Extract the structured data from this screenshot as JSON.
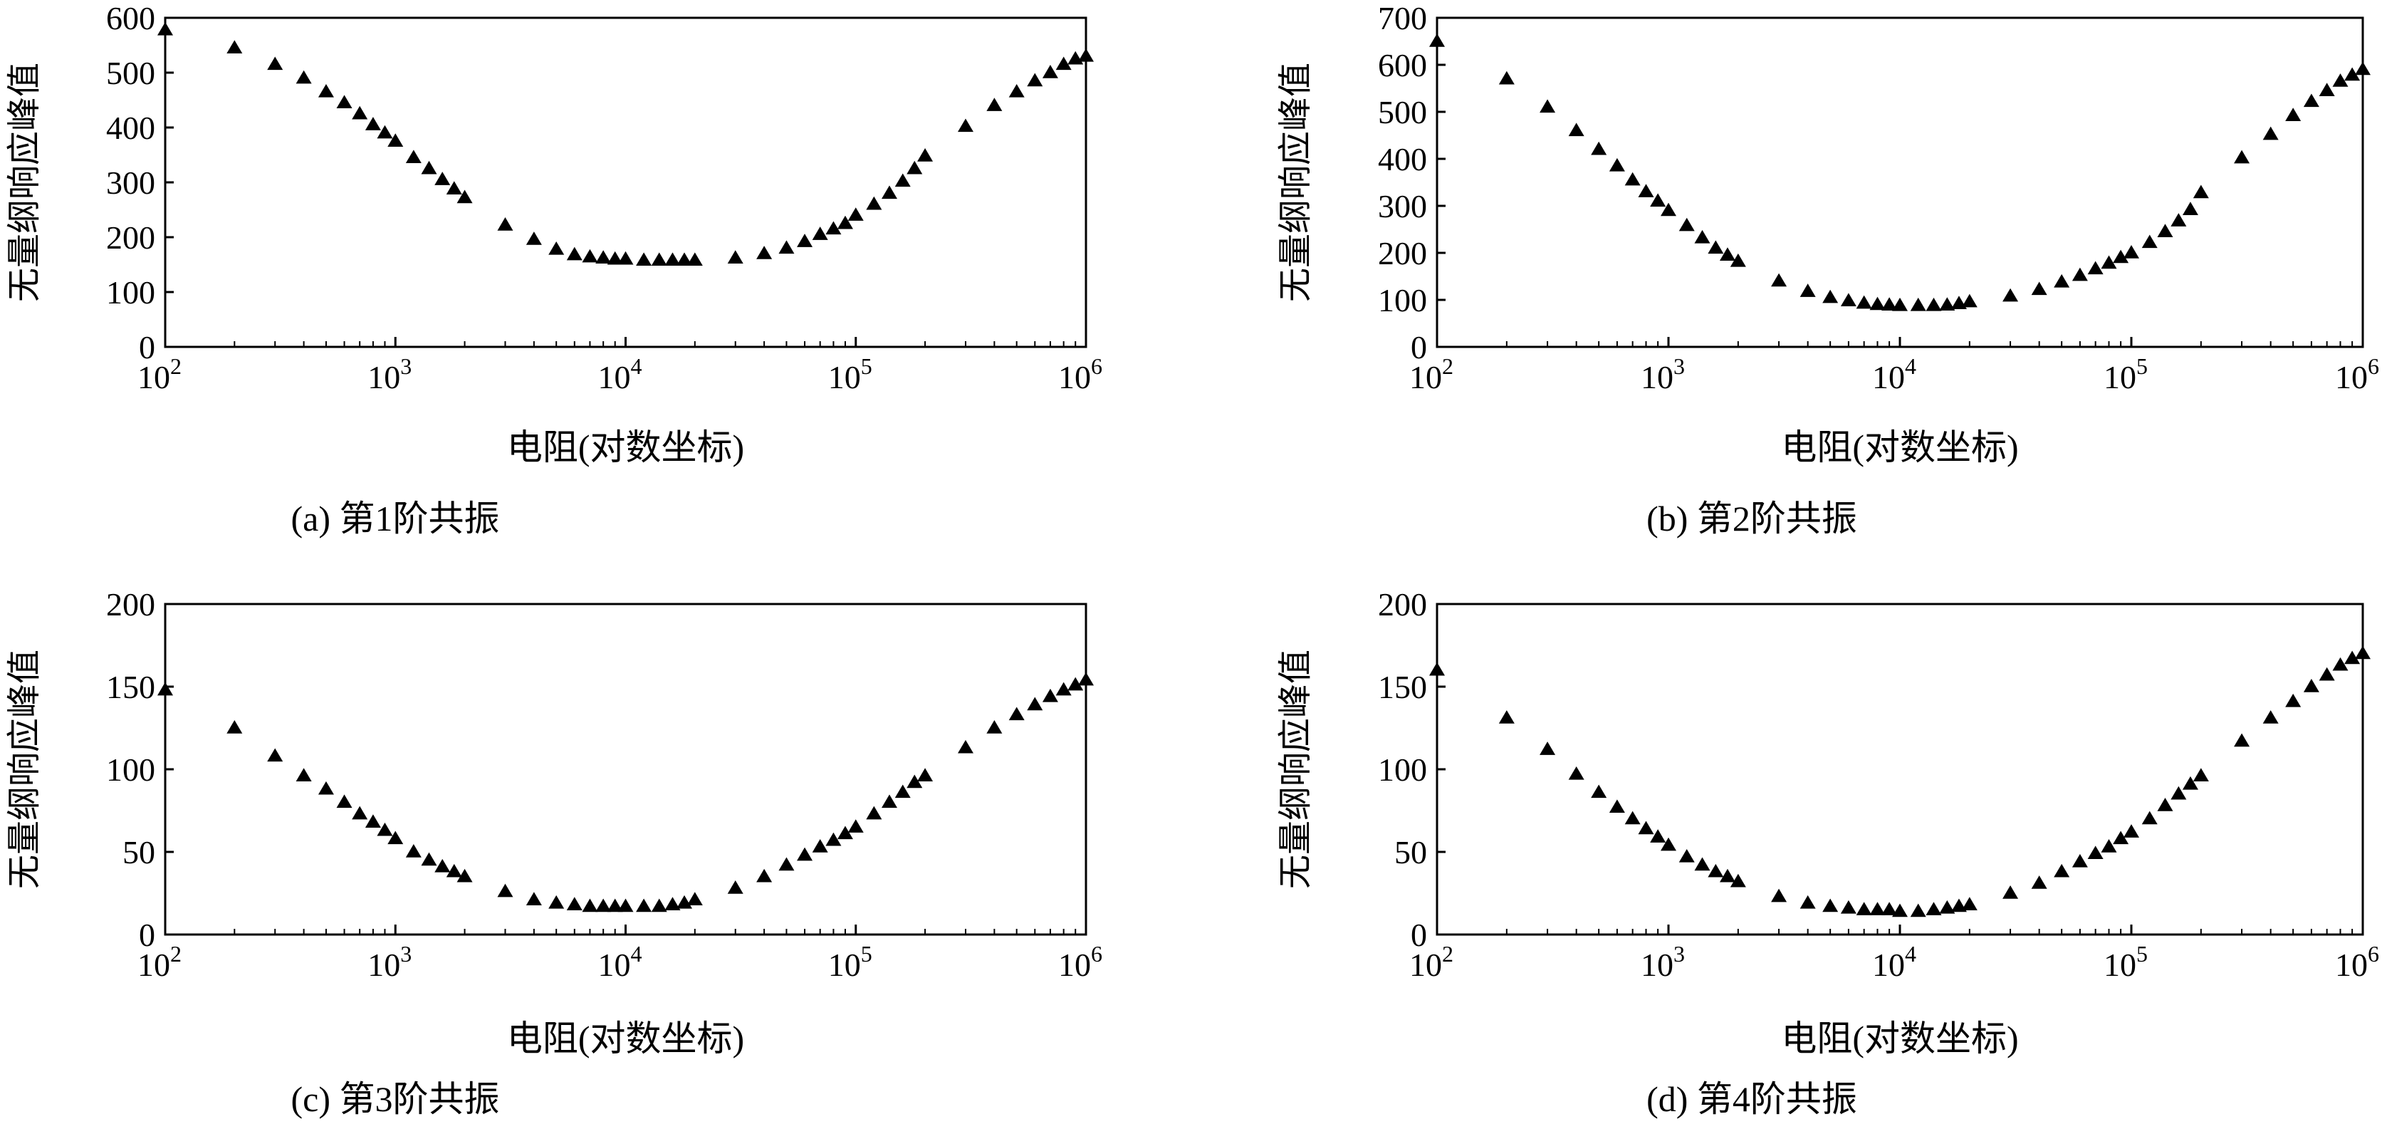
{
  "figure": {
    "panels": [
      {
        "caption": "(a) 第1阶共振"
      },
      {
        "caption": "(b) 第2阶共振"
      },
      {
        "caption": "(c) 第3阶共振"
      },
      {
        "caption": "(d) 第4阶共振"
      }
    ]
  },
  "chart_data": [
    {
      "type": "scatter",
      "caption": "(a) 第1阶共振",
      "xlabel": "电阻(对数坐标)",
      "ylabel": "无量纲响应峰值",
      "x_scale": "log",
      "xlim": [
        100,
        1000000
      ],
      "ylim": [
        0,
        600
      ],
      "x_ticks": [
        100,
        1000,
        10000,
        100000,
        1000000
      ],
      "x_tick_labels": [
        [
          "10",
          "2"
        ],
        [
          "10",
          "3"
        ],
        [
          "10",
          "4"
        ],
        [
          "10",
          "5"
        ],
        [
          "10",
          "6"
        ]
      ],
      "y_ticks": [
        0,
        100,
        200,
        300,
        400,
        500,
        600
      ],
      "marker": "triangle",
      "series": [
        {
          "x": [
            100,
            200,
            300,
            400,
            500,
            600,
            700,
            800,
            900,
            1000,
            1200,
            1400,
            1600,
            1800,
            2000,
            3000,
            4000,
            5000,
            6000,
            7000,
            8000,
            9000,
            10000,
            12000,
            14000,
            16000,
            18000,
            20000,
            30000,
            40000,
            50000,
            60000,
            70000,
            80000,
            90000,
            100000,
            120000,
            140000,
            160000,
            180000,
            200000,
            300000,
            400000,
            500000,
            600000,
            700000,
            800000,
            900000,
            1000000
          ],
          "y": [
            578,
            545,
            515,
            490,
            465,
            445,
            425,
            405,
            390,
            375,
            345,
            325,
            305,
            288,
            272,
            222,
            196,
            178,
            168,
            164,
            162,
            160,
            160,
            158,
            158,
            158,
            158,
            158,
            162,
            170,
            180,
            192,
            205,
            215,
            225,
            240,
            260,
            280,
            302,
            325,
            348,
            402,
            440,
            465,
            485,
            500,
            515,
            525,
            530
          ]
        }
      ]
    },
    {
      "type": "scatter",
      "caption": "(b) 第2阶共振",
      "xlabel": "电阻(对数坐标)",
      "ylabel": "无量纲响应峰值",
      "x_scale": "log",
      "xlim": [
        100,
        1000000
      ],
      "ylim": [
        0,
        700
      ],
      "x_ticks": [
        100,
        1000,
        10000,
        100000,
        1000000
      ],
      "x_tick_labels": [
        [
          "10",
          "2"
        ],
        [
          "10",
          "3"
        ],
        [
          "10",
          "4"
        ],
        [
          "10",
          "5"
        ],
        [
          "10",
          "6"
        ]
      ],
      "y_ticks": [
        0,
        100,
        200,
        300,
        400,
        500,
        600,
        700
      ],
      "marker": "triangle",
      "series": [
        {
          "x": [
            100,
            200,
            300,
            400,
            500,
            600,
            700,
            800,
            900,
            1000,
            1200,
            1400,
            1600,
            1800,
            2000,
            3000,
            4000,
            5000,
            6000,
            7000,
            8000,
            9000,
            10000,
            12000,
            14000,
            16000,
            18000,
            20000,
            30000,
            40000,
            50000,
            60000,
            70000,
            80000,
            90000,
            100000,
            120000,
            140000,
            160000,
            180000,
            200000,
            300000,
            400000,
            500000,
            600000,
            700000,
            800000,
            900000,
            1000000
          ],
          "y": [
            650,
            570,
            510,
            460,
            420,
            385,
            355,
            330,
            310,
            290,
            258,
            232,
            210,
            195,
            182,
            140,
            118,
            105,
            98,
            93,
            90,
            89,
            88,
            88,
            88,
            89,
            92,
            96,
            108,
            122,
            138,
            152,
            166,
            178,
            190,
            200,
            222,
            245,
            268,
            292,
            328,
            402,
            452,
            492,
            522,
            545,
            565,
            578,
            590
          ]
        }
      ]
    },
    {
      "type": "scatter",
      "caption": "(c) 第3阶共振",
      "xlabel": "电阻(对数坐标)",
      "ylabel": "无量纲响应峰值",
      "x_scale": "log",
      "xlim": [
        100,
        1000000
      ],
      "ylim": [
        0,
        200
      ],
      "x_ticks": [
        100,
        1000,
        10000,
        100000,
        1000000
      ],
      "x_tick_labels": [
        [
          "10",
          "2"
        ],
        [
          "10",
          "3"
        ],
        [
          "10",
          "4"
        ],
        [
          "10",
          "5"
        ],
        [
          "10",
          "6"
        ]
      ],
      "y_ticks": [
        0,
        50,
        100,
        150,
        200
      ],
      "marker": "triangle",
      "series": [
        {
          "x": [
            100,
            200,
            300,
            400,
            500,
            600,
            700,
            800,
            900,
            1000,
            1200,
            1400,
            1600,
            1800,
            2000,
            3000,
            4000,
            5000,
            6000,
            7000,
            8000,
            9000,
            10000,
            12000,
            14000,
            16000,
            18000,
            20000,
            30000,
            40000,
            50000,
            60000,
            70000,
            80000,
            90000,
            100000,
            120000,
            140000,
            160000,
            180000,
            200000,
            300000,
            400000,
            500000,
            600000,
            700000,
            800000,
            900000,
            1000000
          ],
          "y": [
            148,
            125,
            108,
            96,
            88,
            80,
            73,
            68,
            63,
            58,
            50,
            45,
            41,
            38,
            35,
            26,
            21,
            19,
            18,
            17,
            17,
            17,
            17,
            17,
            17,
            18,
            19,
            21,
            28,
            35,
            42,
            48,
            53,
            57,
            61,
            65,
            73,
            80,
            86,
            92,
            96,
            113,
            125,
            133,
            139,
            144,
            148,
            151,
            154
          ]
        }
      ]
    },
    {
      "type": "scatter",
      "caption": "(d) 第4阶共振",
      "xlabel": "电阻(对数坐标)",
      "ylabel": "无量纲响应峰值",
      "x_scale": "log",
      "xlim": [
        100,
        1000000
      ],
      "ylim": [
        0,
        200
      ],
      "x_ticks": [
        100,
        1000,
        10000,
        100000,
        1000000
      ],
      "x_tick_labels": [
        [
          "10",
          "2"
        ],
        [
          "10",
          "3"
        ],
        [
          "10",
          "4"
        ],
        [
          "10",
          "5"
        ],
        [
          "10",
          "6"
        ]
      ],
      "y_ticks": [
        0,
        50,
        100,
        150,
        200
      ],
      "marker": "triangle",
      "series": [
        {
          "x": [
            100,
            200,
            300,
            400,
            500,
            600,
            700,
            800,
            900,
            1000,
            1200,
            1400,
            1600,
            1800,
            2000,
            3000,
            4000,
            5000,
            6000,
            7000,
            8000,
            9000,
            10000,
            12000,
            14000,
            16000,
            18000,
            20000,
            30000,
            40000,
            50000,
            60000,
            70000,
            80000,
            90000,
            100000,
            120000,
            140000,
            160000,
            180000,
            200000,
            300000,
            400000,
            500000,
            600000,
            700000,
            800000,
            900000,
            1000000
          ],
          "y": [
            160,
            131,
            112,
            97,
            86,
            77,
            70,
            64,
            59,
            54,
            47,
            42,
            38,
            35,
            32,
            23,
            19,
            17,
            16,
            15,
            15,
            15,
            14,
            14,
            15,
            16,
            17,
            18,
            25,
            31,
            38,
            44,
            49,
            53,
            58,
            62,
            70,
            78,
            85,
            91,
            96,
            117,
            131,
            141,
            150,
            157,
            163,
            167,
            170
          ]
        }
      ]
    }
  ]
}
